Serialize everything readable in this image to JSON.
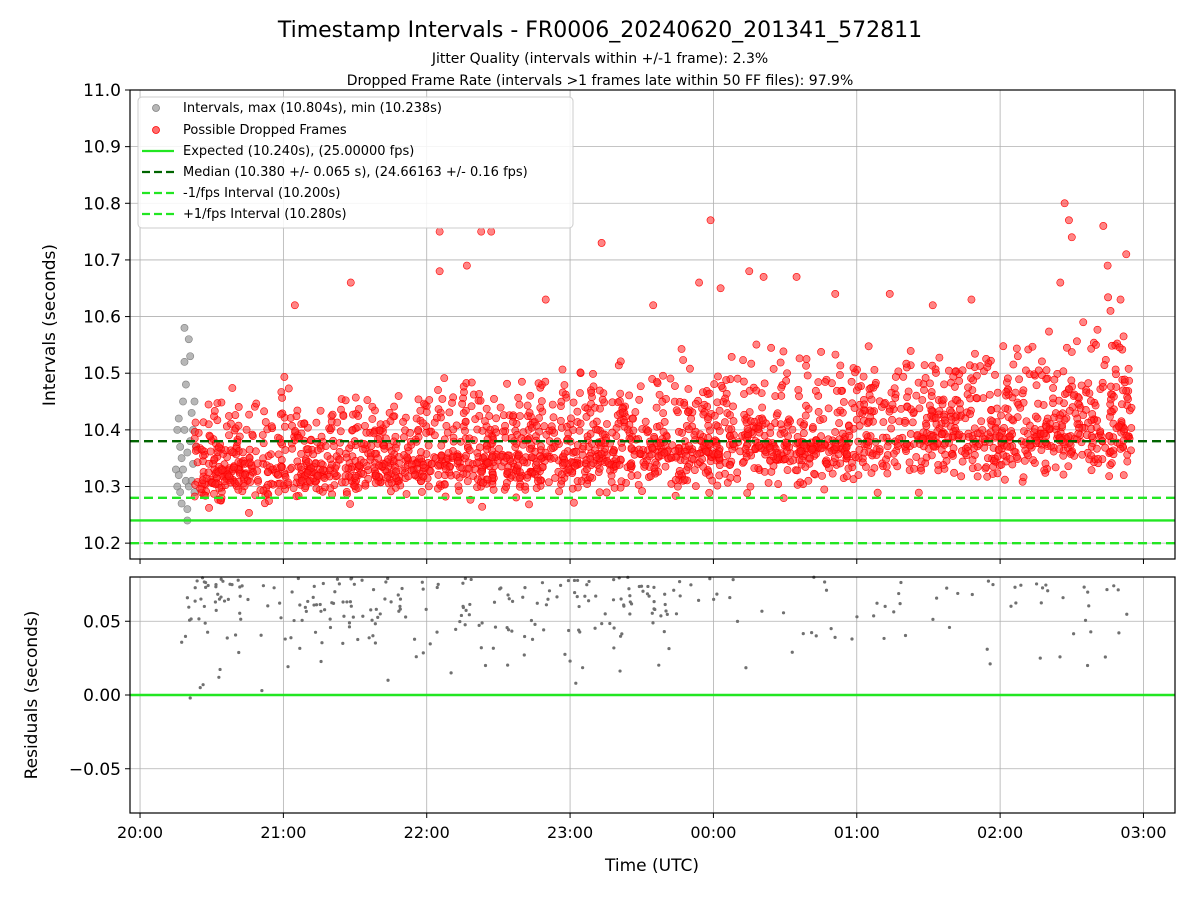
{
  "chart_data": {
    "type": "scatter",
    "title": "Timestamp Intervals - FR0006_20240620_201341_572811",
    "subtitle_lines": [
      "Jitter Quality (intervals within +/-1 frame): 2.3%",
      "Dropped Frame Rate (intervals >1 frames late within 50 FF files): 97.9%"
    ],
    "xlabel": "Time (UTC)",
    "x_ticks": [
      "20:00",
      "21:00",
      "22:00",
      "23:00",
      "00:00",
      "01:00",
      "02:00",
      "03:00"
    ],
    "x_range_hours": [
      19.93,
      27.22
    ],
    "grid": true,
    "top_panel": {
      "ylabel": "Intervals (seconds)",
      "ylim": [
        10.172,
        11.0
      ],
      "y_ticks": [
        "10.2",
        "10.3",
        "10.4",
        "10.5",
        "10.6",
        "10.7",
        "10.8",
        "10.9",
        "11.0"
      ],
      "legend_placement": "upper-left",
      "legend": [
        "Intervals, max (10.804s), min (10.238s)",
        "Possible Dropped Frames",
        "Expected (10.240s), (25.00000 fps)",
        "Median (10.380 +/- 0.065 s), (24.66163 +/- 0.16 fps)",
        "-1/fps Interval (10.200s)",
        "+1/fps Interval (10.280s)"
      ],
      "lines": {
        "expected": 10.24,
        "median": 10.38,
        "minus_interval": 10.2,
        "plus_interval": 10.28
      },
      "intervals_max": 10.804,
      "intervals_min": 10.238,
      "intervals_count_est": 2400,
      "dropped_count_est": 2350,
      "gray_points": [
        [
          20.25,
          10.33
        ],
        [
          20.26,
          10.4
        ],
        [
          20.26,
          10.3
        ],
        [
          20.27,
          10.42
        ],
        [
          20.27,
          10.32
        ],
        [
          20.28,
          10.29
        ],
        [
          20.28,
          10.37
        ],
        [
          20.29,
          10.35
        ],
        [
          20.29,
          10.27
        ],
        [
          20.3,
          10.45
        ],
        [
          20.3,
          10.33
        ],
        [
          20.31,
          10.58
        ],
        [
          20.31,
          10.52
        ],
        [
          20.31,
          10.4
        ],
        [
          20.32,
          10.31
        ],
        [
          20.32,
          10.48
        ],
        [
          20.33,
          10.26
        ],
        [
          20.33,
          10.24
        ],
        [
          20.33,
          10.36
        ],
        [
          20.34,
          10.56
        ],
        [
          20.34,
          10.3
        ],
        [
          20.35,
          10.53
        ],
        [
          20.35,
          10.38
        ],
        [
          20.36,
          10.43
        ],
        [
          20.36,
          10.31
        ],
        [
          20.37,
          10.34
        ],
        [
          20.37,
          10.4
        ],
        [
          20.38,
          10.45
        ],
        [
          20.38,
          10.29
        ],
        [
          20.39,
          10.37
        ]
      ],
      "red_points": [
        [
          21.08,
          10.62
        ],
        [
          21.47,
          10.66
        ],
        [
          22.09,
          10.75
        ],
        [
          22.09,
          10.68
        ],
        [
          22.28,
          10.69
        ],
        [
          22.38,
          10.75
        ],
        [
          22.45,
          10.75
        ],
        [
          22.83,
          10.63
        ],
        [
          23.22,
          10.73
        ],
        [
          23.58,
          10.62
        ],
        [
          23.9,
          10.66
        ],
        [
          23.98,
          10.77
        ],
        [
          24.05,
          10.65
        ],
        [
          24.25,
          10.68
        ],
        [
          24.35,
          10.67
        ],
        [
          24.58,
          10.67
        ],
        [
          24.85,
          10.64
        ],
        [
          25.23,
          10.64
        ],
        [
          25.53,
          10.62
        ],
        [
          25.8,
          10.63
        ],
        [
          26.45,
          10.8
        ],
        [
          26.48,
          10.77
        ],
        [
          26.5,
          10.74
        ],
        [
          26.72,
          10.76
        ],
        [
          26.88,
          10.71
        ],
        [
          26.42,
          10.66
        ],
        [
          26.75,
          10.69
        ],
        [
          26.84,
          10.63
        ],
        [
          26.58,
          10.59
        ],
        [
          26.77,
          10.61
        ]
      ]
    },
    "bottom_panel": {
      "ylabel": "Residuals (seconds)",
      "ylim": [
        -0.08,
        0.08
      ],
      "y_ticks": [
        "0.00",
        "0.05",
        "−0.05"
      ],
      "zero_line": 0.0,
      "points": [
        [
          20.35,
          -0.002
        ],
        [
          20.42,
          0.005
        ],
        [
          20.44,
          0.007
        ],
        [
          20.85,
          0.003
        ],
        [
          21.73,
          0.01
        ],
        [
          22.17,
          0.015
        ],
        [
          22.41,
          0.02
        ],
        [
          23.04,
          0.008
        ],
        [
          26.61,
          0.02
        ],
        [
          26.28,
          0.025
        ],
        [
          24.55,
          0.029
        ],
        [
          25.91,
          0.031
        ],
        [
          23.0,
          0.023
        ],
        [
          20.55,
          0.012
        ]
      ]
    }
  }
}
